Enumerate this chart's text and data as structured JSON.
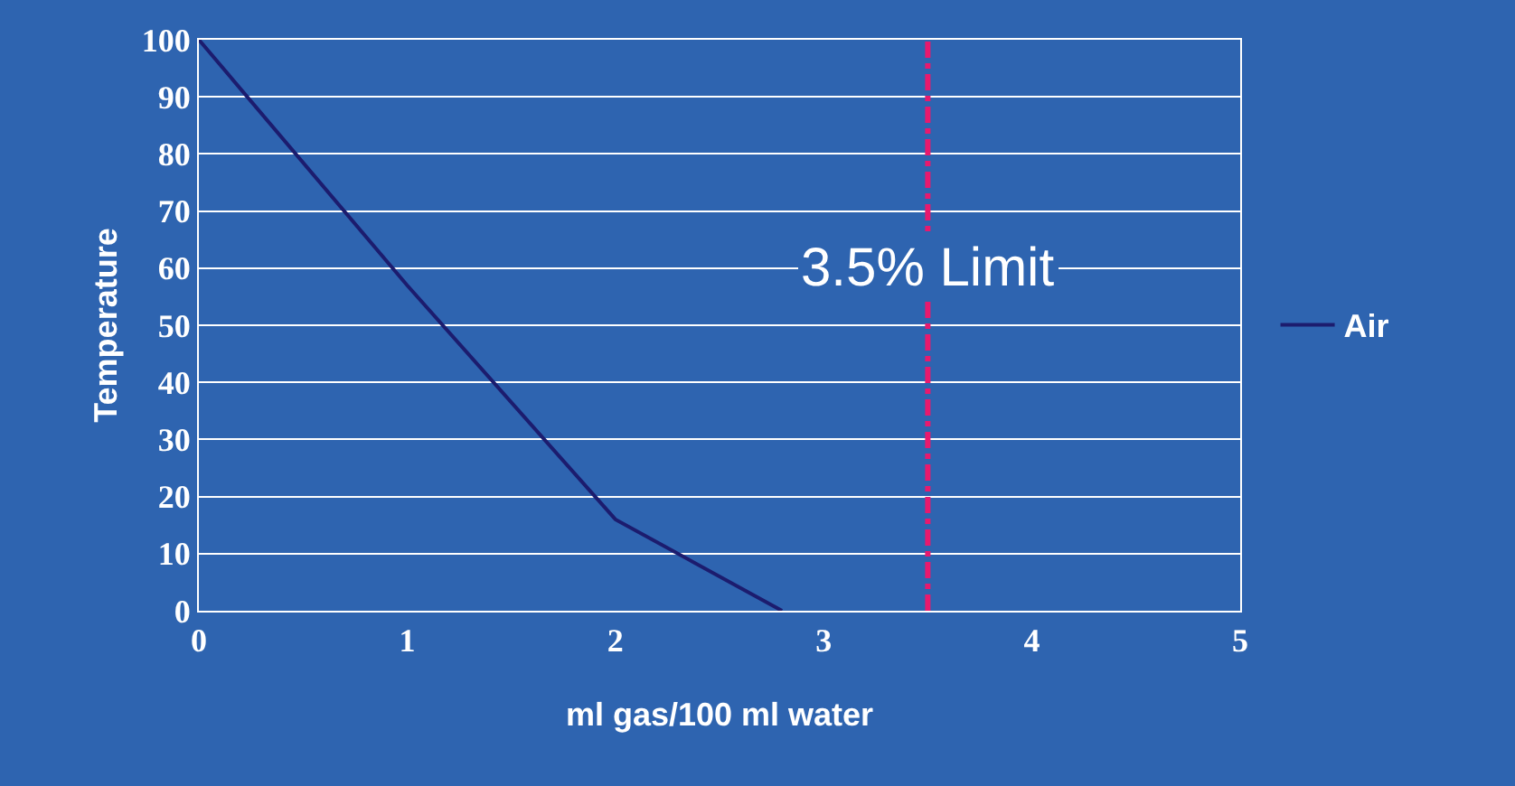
{
  "chart_data": {
    "type": "line",
    "xlabel": "ml gas/100 ml water",
    "ylabel": "Temperature",
    "x": [
      0,
      1,
      2,
      2.8
    ],
    "series": [
      {
        "name": "Air",
        "color": "#1c1c6e",
        "values": [
          100,
          57,
          16,
          0
        ]
      }
    ],
    "xlim": [
      0,
      5
    ],
    "xticks": [
      0,
      1,
      2,
      3,
      4,
      5
    ],
    "ylim": [
      0,
      100
    ],
    "yticks": [
      0,
      10,
      20,
      30,
      40,
      50,
      60,
      70,
      80,
      90,
      100
    ],
    "ref_lines": [
      {
        "axis": "x",
        "value": 3.5,
        "label": "3.5% Limit",
        "color": "#e8196e",
        "line_style": "dashdot"
      }
    ],
    "grid": "y",
    "legend": "right",
    "marker": "none",
    "line_style": "solid"
  }
}
